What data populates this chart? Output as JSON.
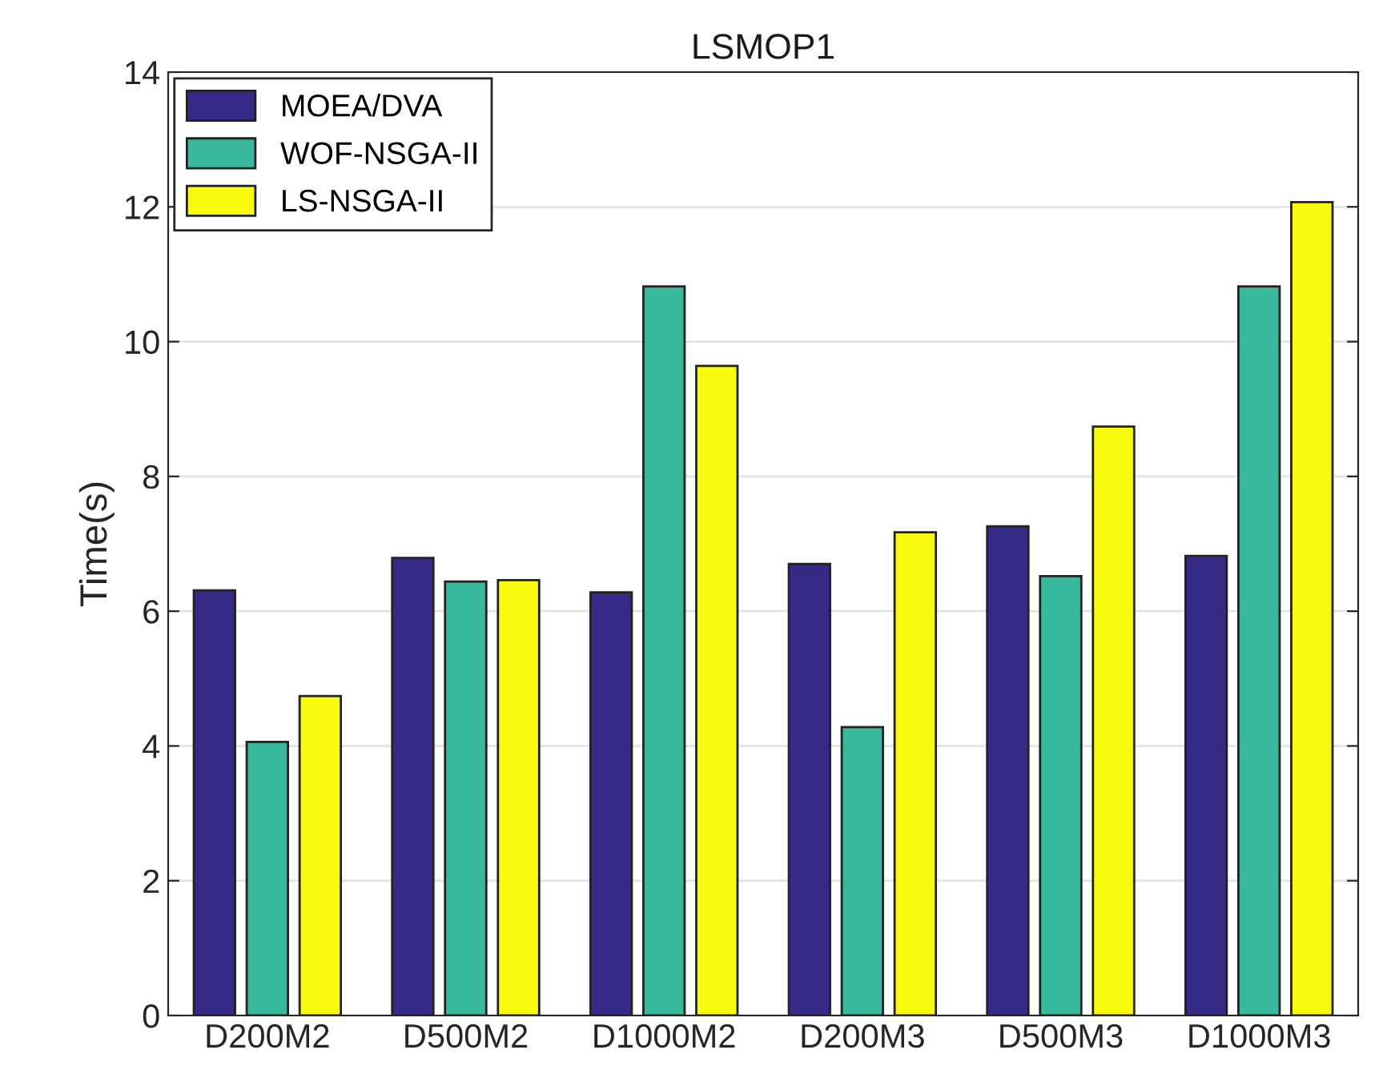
{
  "chart_data": {
    "type": "bar",
    "title": "LSMOP1",
    "ylabel": "Time(s)",
    "categories": [
      "D200M2",
      "D500M2",
      "D1000M2",
      "D200M3",
      "D500M3",
      "D1000M3"
    ],
    "series": [
      {
        "name": "MOEA/DVA",
        "color": "#352a87",
        "values": [
          6.31,
          6.79,
          6.28,
          6.7,
          7.26,
          6.82
        ]
      },
      {
        "name": "WOF-NSGA-II",
        "color": "#38b99e",
        "values": [
          4.06,
          6.44,
          10.82,
          4.28,
          6.52,
          10.82
        ]
      },
      {
        "name": "LS-NSGA-II",
        "color": "#f9fb0e",
        "values": [
          4.74,
          6.46,
          9.64,
          7.17,
          8.74,
          12.07
        ]
      }
    ],
    "ylim": [
      0,
      14
    ],
    "yticks": [
      0,
      2,
      4,
      6,
      8,
      10,
      12,
      14
    ],
    "grid": "y",
    "legend": "top left"
  }
}
